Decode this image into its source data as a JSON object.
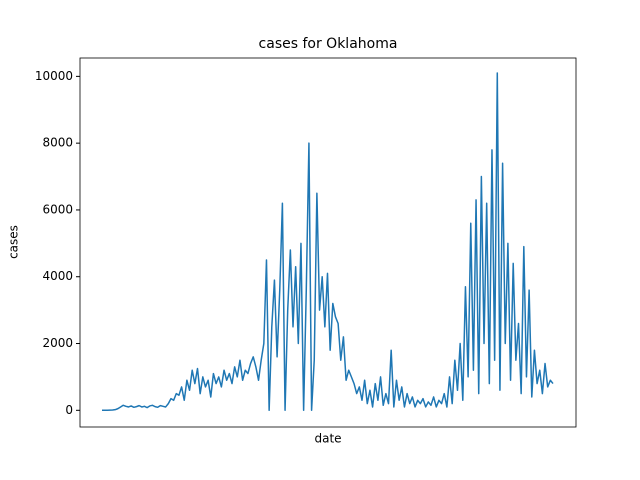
{
  "chart_data": {
    "type": "line",
    "title": "cases for Oklahoma",
    "xlabel": "date",
    "ylabel": "cases",
    "color": "#1f77b4",
    "values": [
      0,
      0,
      0,
      5,
      10,
      20,
      50,
      100,
      150,
      120,
      100,
      130,
      90,
      110,
      140,
      100,
      120,
      80,
      130,
      150,
      110,
      90,
      140,
      120,
      100,
      200,
      350,
      300,
      500,
      450,
      700,
      300,
      900,
      600,
      1200,
      800,
      1250,
      500,
      1000,
      700,
      900,
      400,
      1100,
      800,
      1000,
      700,
      1200,
      900,
      1100,
      800,
      1300,
      1000,
      1500,
      900,
      1200,
      1100,
      1400,
      1600,
      1300,
      900,
      1500,
      2000,
      4500,
      0,
      2500,
      3900,
      1600,
      3600,
      6200,
      0,
      3000,
      4800,
      2500,
      4300,
      2000,
      5000,
      0,
      3600,
      8000,
      0,
      1500,
      6500,
      3000,
      4000,
      2500,
      4100,
      1800,
      3200,
      2800,
      2600,
      1500,
      2200,
      900,
      1200,
      1000,
      800,
      500,
      700,
      300,
      900,
      200,
      600,
      100,
      800,
      300,
      1000,
      150,
      500,
      200,
      1800,
      100,
      900,
      300,
      700,
      100,
      500,
      200,
      400,
      100,
      300,
      200,
      350,
      100,
      250,
      150,
      400,
      100,
      300,
      200,
      500,
      100,
      1000,
      200,
      1500,
      600,
      2000,
      300,
      3700,
      1000,
      5600,
      1200,
      6300,
      500,
      7000,
      2000,
      6200,
      800,
      7800,
      1500,
      10100,
      600,
      7400,
      2000,
      5000,
      900,
      4400,
      1500,
      2600,
      500,
      4900,
      1000,
      3600,
      400,
      1800,
      800,
      1200,
      500,
      1400,
      700,
      900,
      800
    ],
    "ylim": [
      -500,
      10550
    ],
    "yticks": [
      0,
      2000,
      4000,
      6000,
      8000,
      10000
    ]
  }
}
